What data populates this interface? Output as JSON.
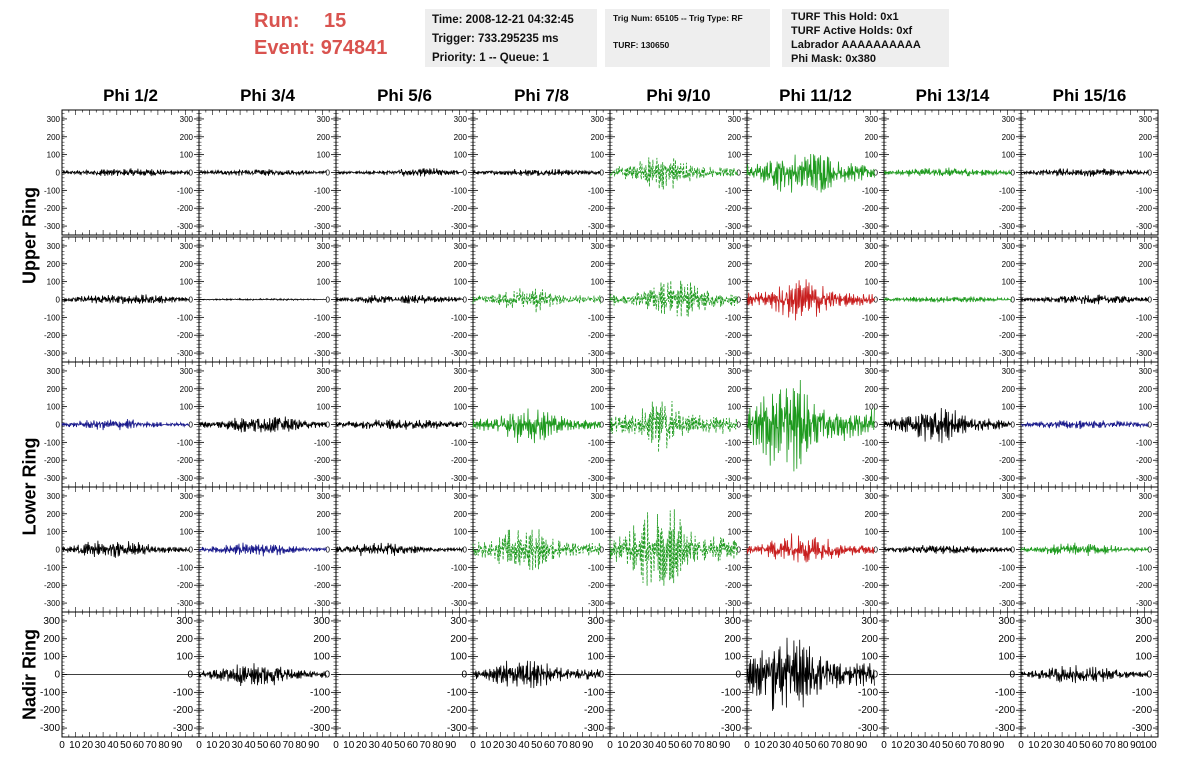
{
  "header": {
    "run_label": "Run:",
    "run_value": "15",
    "event_label": "Event:",
    "event_value": "974841",
    "time": "Time: 2008-12-21 04:32:45",
    "trigger": "Trigger: 733.295235 ms",
    "priority": "Priority: 1 -- Queue: 1",
    "trig_num": "Trig Num: 65105 -- Trig Type: RF",
    "turf": "TURF: 130650",
    "turf_hold": "TURF This Hold: 0x1",
    "turf_active": "TURF Active Holds: 0xf",
    "labrador": "Labrador AAAAAAAAAA",
    "phi_mask": "Phi Mask: 0x380"
  },
  "columns": [
    "Phi 1/2",
    "Phi 3/4",
    "Phi 5/6",
    "Phi 7/8",
    "Phi 9/10",
    "Phi 11/12",
    "Phi 13/14",
    "Phi 15/16"
  ],
  "rings": [
    {
      "label": "Upper Ring",
      "rows": [
        0,
        1
      ]
    },
    {
      "label": "Lower Ring",
      "rows": [
        2,
        3
      ]
    },
    {
      "label": "Nadir Ring",
      "rows": [
        4
      ]
    }
  ],
  "colors": {
    "black": "#000000",
    "green": "#1e9a1e",
    "blue": "#1a1a8c",
    "red": "#c81e1e",
    "header_red": "#d9534f",
    "box_bg": "#eeeeee"
  },
  "chart_data": {
    "type": "line",
    "ylim": [
      -350,
      350
    ],
    "xlim": [
      0,
      100
    ],
    "yticks_labeled": [
      -300,
      -200,
      -100,
      0,
      100,
      200,
      300
    ],
    "yticks_nadir": [
      -300,
      -200,
      -100,
      0,
      100,
      200,
      300
    ],
    "xtick_labels": [
      "0",
      "10",
      "20",
      "30",
      "40",
      "50",
      "60",
      "70",
      "80",
      "90",
      "100"
    ],
    "panels": [
      [
        {
          "color": "black",
          "style": "solid",
          "amp": 18,
          "center": 50,
          "width": 60
        },
        {
          "color": "black",
          "style": "solid",
          "amp": 15,
          "center": 50,
          "width": 60
        },
        {
          "color": "black",
          "style": "solid",
          "amp": 20,
          "center": 65,
          "width": 40
        },
        {
          "color": "black",
          "style": "solid",
          "amp": 16,
          "center": 50,
          "width": 60
        },
        {
          "color": "green",
          "style": "dashed",
          "amp": 75,
          "center": 40,
          "width": 30
        },
        {
          "color": "green",
          "style": "solid",
          "amp": 110,
          "center": 45,
          "width": 35
        },
        {
          "color": "green",
          "style": "solid",
          "amp": 22,
          "center": 50,
          "width": 60
        },
        {
          "color": "black",
          "style": "solid",
          "amp": 18,
          "center": 50,
          "width": 60
        }
      ],
      [
        {
          "color": "black",
          "style": "solid",
          "amp": 22,
          "center": 50,
          "width": 60
        },
        {
          "color": "black",
          "style": "solid",
          "amp": 4,
          "center": 50,
          "width": 60
        },
        {
          "color": "black",
          "style": "solid",
          "amp": 20,
          "center": 50,
          "width": 60
        },
        {
          "color": "green",
          "style": "dashed",
          "amp": 60,
          "center": 42,
          "width": 25
        },
        {
          "color": "green",
          "style": "dashed",
          "amp": 85,
          "center": 55,
          "width": 35
        },
        {
          "color": "red",
          "style": "solid",
          "amp": 90,
          "center": 42,
          "width": 30
        },
        {
          "color": "green",
          "style": "solid",
          "amp": 14,
          "center": 50,
          "width": 60
        },
        {
          "color": "black",
          "style": "solid",
          "amp": 22,
          "center": 55,
          "width": 50
        }
      ],
      [
        {
          "color": "blue",
          "style": "solid",
          "amp": 25,
          "center": 40,
          "width": 40
        },
        {
          "color": "black",
          "style": "solid",
          "amp": 40,
          "center": 50,
          "width": 40
        },
        {
          "color": "black",
          "style": "solid",
          "amp": 24,
          "center": 50,
          "width": 60
        },
        {
          "color": "green",
          "style": "solid",
          "amp": 80,
          "center": 45,
          "width": 30
        },
        {
          "color": "green",
          "style": "dashed",
          "amp": 130,
          "center": 40,
          "width": 20
        },
        {
          "color": "green",
          "style": "solid",
          "amp": 230,
          "center": 30,
          "width": 25
        },
        {
          "color": "black",
          "style": "solid",
          "amp": 80,
          "center": 40,
          "width": 30
        },
        {
          "color": "blue",
          "style": "solid",
          "amp": 20,
          "center": 50,
          "width": 60
        }
      ],
      [
        {
          "color": "black",
          "style": "solid",
          "amp": 40,
          "center": 40,
          "width": 40
        },
        {
          "color": "blue",
          "style": "solid",
          "amp": 30,
          "center": 45,
          "width": 40
        },
        {
          "color": "black",
          "style": "solid",
          "amp": 30,
          "center": 35,
          "width": 40
        },
        {
          "color": "green",
          "style": "dashed",
          "amp": 100,
          "center": 40,
          "width": 30
        },
        {
          "color": "green",
          "style": "dashed",
          "amp": 190,
          "center": 40,
          "width": 30
        },
        {
          "color": "red",
          "style": "solid",
          "amp": 70,
          "center": 45,
          "width": 35
        },
        {
          "color": "black",
          "style": "solid",
          "amp": 20,
          "center": 50,
          "width": 60
        },
        {
          "color": "green",
          "style": "solid",
          "amp": 30,
          "center": 45,
          "width": 40
        }
      ],
      [
        {
          "color": "black",
          "style": "flat",
          "amp": 0,
          "center": 50,
          "width": 60
        },
        {
          "color": "black",
          "style": "solid",
          "amp": 50,
          "center": 45,
          "width": 40
        },
        {
          "color": "black",
          "style": "flat",
          "amp": 0,
          "center": 50,
          "width": 60
        },
        {
          "color": "black",
          "style": "solid",
          "amp": 75,
          "center": 40,
          "width": 30
        },
        {
          "color": "black",
          "style": "flat",
          "amp": 0,
          "center": 50,
          "width": 60
        },
        {
          "color": "black",
          "style": "solid",
          "amp": 170,
          "center": 30,
          "width": 35
        },
        {
          "color": "black",
          "style": "flat",
          "amp": 0,
          "center": 50,
          "width": 60
        },
        {
          "color": "black",
          "style": "solid",
          "amp": 40,
          "center": 45,
          "width": 40
        }
      ]
    ]
  }
}
